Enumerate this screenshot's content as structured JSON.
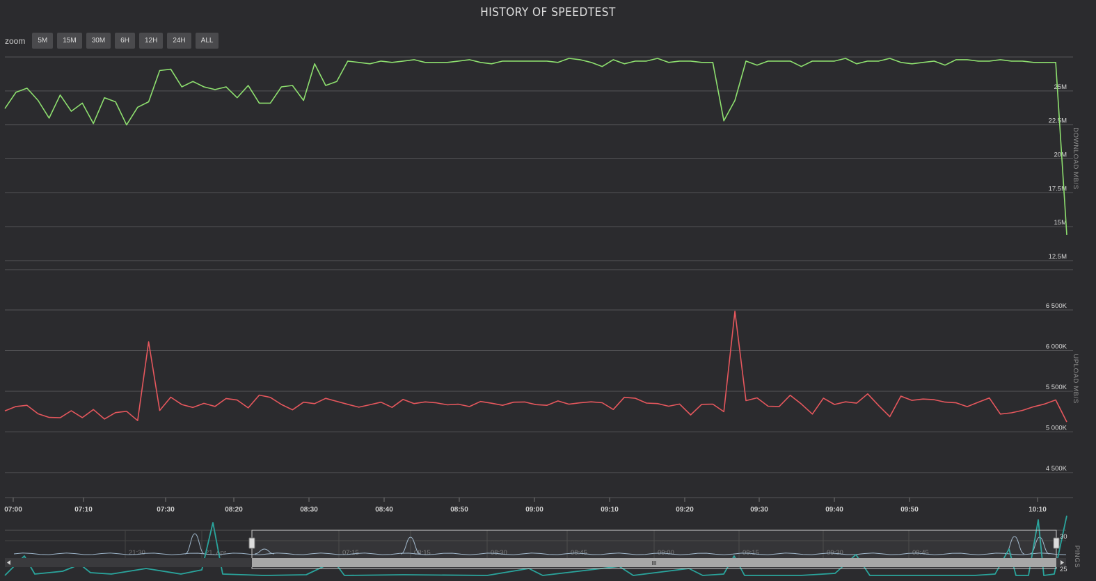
{
  "title": "HISTORY OF SPEEDTEST",
  "zoom": {
    "label": "zoom",
    "buttons": [
      "5M",
      "15M",
      "30M",
      "6H",
      "12H",
      "24H",
      "ALL"
    ]
  },
  "colors": {
    "background": "#2b2b2e",
    "download": "#8ee06f",
    "upload": "#e6575d",
    "ping": "#2aa59d",
    "navigator_line": "#9fb7cc",
    "grid": "#555558"
  },
  "chart_data": {
    "type": "line",
    "title": "HISTORY OF SPEEDTEST",
    "x": {
      "ticks": [
        "07:00",
        "07:10",
        "07:30",
        "08:20",
        "08:30",
        "08:40",
        "08:50",
        "09:00",
        "09:10",
        "09:20",
        "09:30",
        "09:40",
        "09:50",
        "10:10"
      ]
    },
    "download": {
      "ylabel": "DOWNLOAD MB/S",
      "yticks": [
        "25M",
        "22.5M",
        "20M",
        "17.5M",
        "15M",
        "12.5M"
      ],
      "ylim": [
        12.5,
        27.5
      ],
      "series": [
        {
          "values": [
            23.7,
            24.9,
            25.2,
            24.3,
            23.0,
            24.7,
            23.5,
            24.1,
            22.6,
            24.5,
            24.2,
            22.5,
            23.8,
            24.2,
            26.5,
            26.6,
            25.3,
            25.7,
            25.3,
            25.1,
            25.3,
            24.5,
            25.4,
            24.1,
            24.1,
            25.3,
            25.4,
            24.3,
            27.0,
            25.4,
            25.7,
            27.2,
            27.1,
            27.0,
            27.2,
            27.1,
            27.2,
            27.3,
            27.1,
            27.1,
            27.1,
            27.2,
            27.3,
            27.1,
            27.0,
            27.2,
            27.2,
            27.2,
            27.2,
            27.2,
            27.1,
            27.4,
            27.3,
            27.1,
            26.8,
            27.3,
            27.0,
            27.2,
            27.2,
            27.4,
            27.1,
            27.2,
            27.2,
            27.1,
            27.1,
            22.8,
            24.3,
            27.2,
            26.9,
            27.2,
            27.2,
            27.2,
            26.8,
            27.2,
            27.2,
            27.2,
            27.4,
            27.0,
            27.2,
            27.2,
            27.4,
            27.1,
            27.0,
            27.1,
            27.2,
            26.9,
            27.3,
            27.3,
            27.2,
            27.2,
            27.3,
            27.2,
            27.2,
            27.1,
            27.1,
            27.1,
            14.4
          ]
        }
      ]
    },
    "upload": {
      "ylabel": "UPLOAD MB/S",
      "yticks": [
        "6 500K",
        "6 000K",
        "5 500K",
        "5 000K",
        "4 500K"
      ],
      "ylim": [
        4300,
        6700
      ],
      "series": [
        {
          "values": [
            5258,
            5313,
            5327,
            5223,
            5179,
            5174,
            5261,
            5176,
            5275,
            5159,
            5238,
            5254,
            5139,
            6108,
            5264,
            5427,
            5337,
            5301,
            5351,
            5314,
            5411,
            5392,
            5296,
            5453,
            5425,
            5338,
            5272,
            5366,
            5348,
            5413,
            5376,
            5339,
            5304,
            5334,
            5366,
            5302,
            5400,
            5349,
            5369,
            5358,
            5333,
            5341,
            5312,
            5374,
            5353,
            5327,
            5366,
            5368,
            5336,
            5327,
            5381,
            5341,
            5358,
            5370,
            5359,
            5276,
            5426,
            5414,
            5355,
            5349,
            5316,
            5343,
            5209,
            5339,
            5342,
            5249,
            6485,
            5385,
            5419,
            5316,
            5313,
            5451,
            5344,
            5220,
            5415,
            5338,
            5370,
            5354,
            5468,
            5323,
            5188,
            5440,
            5388,
            5404,
            5397,
            5367,
            5358,
            5311,
            5366,
            5418,
            5220,
            5235,
            5265,
            5309,
            5344,
            5393,
            5123
          ]
        }
      ]
    },
    "navigator": {
      "ylabel": "PINGS",
      "yticks": [
        "30",
        "25"
      ],
      "xticks": [
        "21:30",
        "21. Apr",
        "07:15",
        "08:15",
        "08:30",
        "08:45",
        "09:00",
        "09:15",
        "09:30",
        "09:45"
      ],
      "handle": "III"
    }
  }
}
